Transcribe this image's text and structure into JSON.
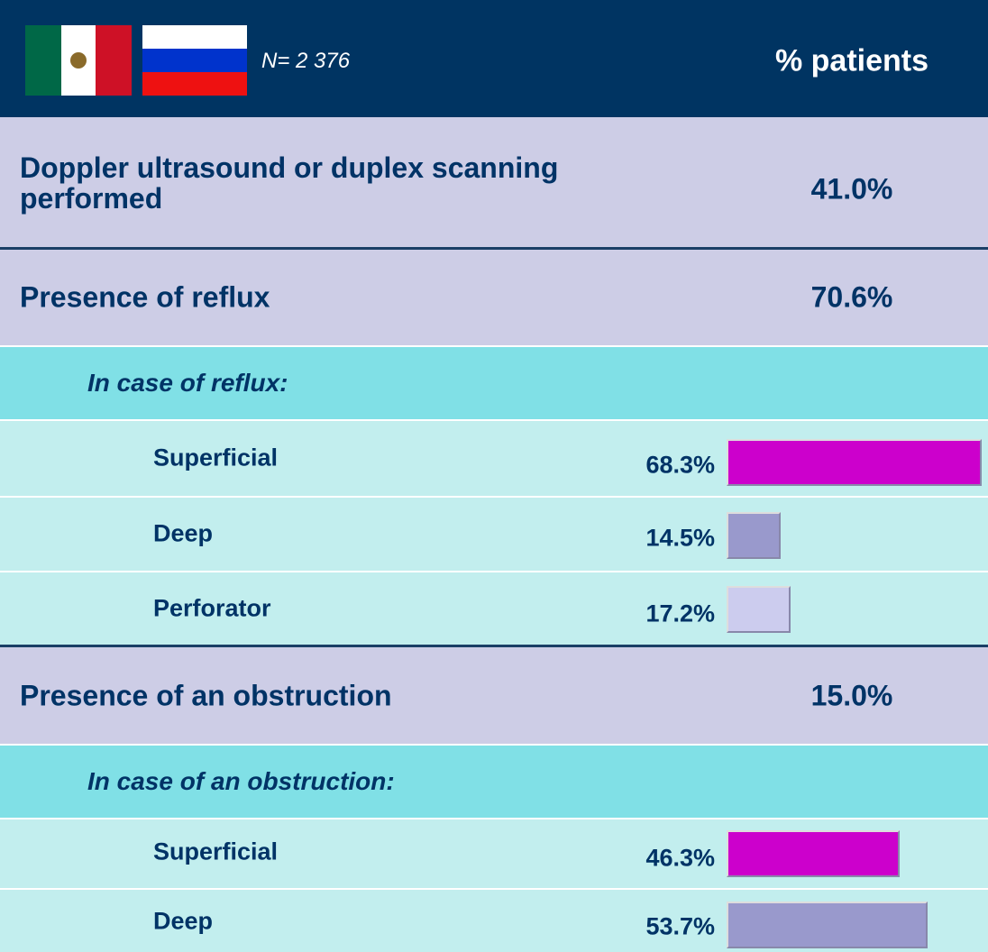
{
  "header": {
    "sample": "N= 2 376",
    "column": "% patients"
  },
  "doppler": {
    "label": "Doppler ultrasound or duplex scanning performed",
    "value": "41.0%"
  },
  "reflux": {
    "label": "Presence of reflux",
    "value": "70.6%",
    "subheader": "In case of reflux:",
    "items": [
      {
        "label": "Superficial",
        "value": 68.3,
        "value_label": "68.3%",
        "color": "#cc00cc"
      },
      {
        "label": "Deep",
        "value": 14.5,
        "value_label": "14.5%",
        "color": "#9999cc"
      },
      {
        "label": "Perforator",
        "value": 17.2,
        "value_label": "17.2%",
        "color": "#ccccee"
      }
    ]
  },
  "obstruction": {
    "label": "Presence of an obstruction",
    "value": "15.0%",
    "subheader": "In case of an obstruction:",
    "items": [
      {
        "label": "Superficial",
        "value": 46.3,
        "value_label": "46.3%",
        "color": "#cc00cc"
      },
      {
        "label": "Deep",
        "value": 53.7,
        "value_label": "53.7%",
        "color": "#9999cc"
      }
    ]
  }
}
